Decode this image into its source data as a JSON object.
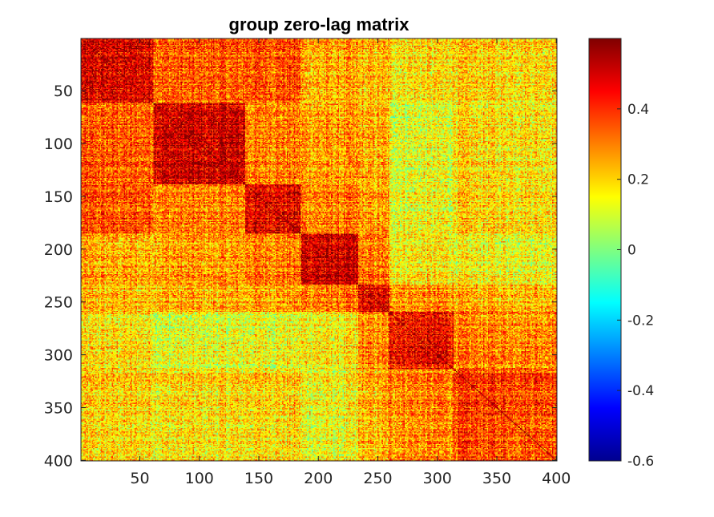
{
  "chart_data": {
    "type": "heatmap",
    "title": "group zero-lag matrix",
    "xlabel": "",
    "ylabel": "",
    "xlim": [
      0.5,
      400.5
    ],
    "ylim": [
      0.5,
      400.5
    ],
    "y_direction": "reverse",
    "x_ticks": [
      50,
      100,
      150,
      200,
      250,
      300,
      350,
      400
    ],
    "y_ticks": [
      50,
      100,
      150,
      200,
      250,
      300,
      350,
      400
    ],
    "x_tick_labels": [
      "50",
      "100",
      "150",
      "200",
      "250",
      "300",
      "350",
      "400"
    ],
    "y_tick_labels": [
      "50",
      "100",
      "150",
      "200",
      "250",
      "300",
      "350",
      "400"
    ],
    "colormap": "jet",
    "color_limits": [
      -0.6,
      0.6
    ],
    "colorbar": {
      "placement": "right",
      "ticks": [
        -0.6,
        -0.4,
        -0.2,
        0,
        0.2,
        0.4
      ],
      "tick_labels": [
        "-0.6",
        "-0.4",
        "-0.2",
        "0",
        "0.2",
        "0.4"
      ]
    },
    "block_boundaries": [
      1,
      62,
      139,
      186,
      234,
      260,
      314,
      401
    ],
    "block_means": [
      [
        0.48,
        0.34,
        0.36,
        0.24,
        0.22,
        0.18,
        0.2
      ],
      [
        0.34,
        0.5,
        0.3,
        0.26,
        0.24,
        0.12,
        0.18
      ],
      [
        0.36,
        0.3,
        0.48,
        0.3,
        0.26,
        0.14,
        0.2
      ],
      [
        0.24,
        0.26,
        0.3,
        0.5,
        0.3,
        0.16,
        0.14
      ],
      [
        0.22,
        0.24,
        0.26,
        0.3,
        0.46,
        0.28,
        0.24
      ],
      [
        0.18,
        0.12,
        0.14,
        0.16,
        0.28,
        0.46,
        0.3
      ],
      [
        0.2,
        0.18,
        0.2,
        0.14,
        0.24,
        0.3,
        0.38
      ]
    ]
  }
}
